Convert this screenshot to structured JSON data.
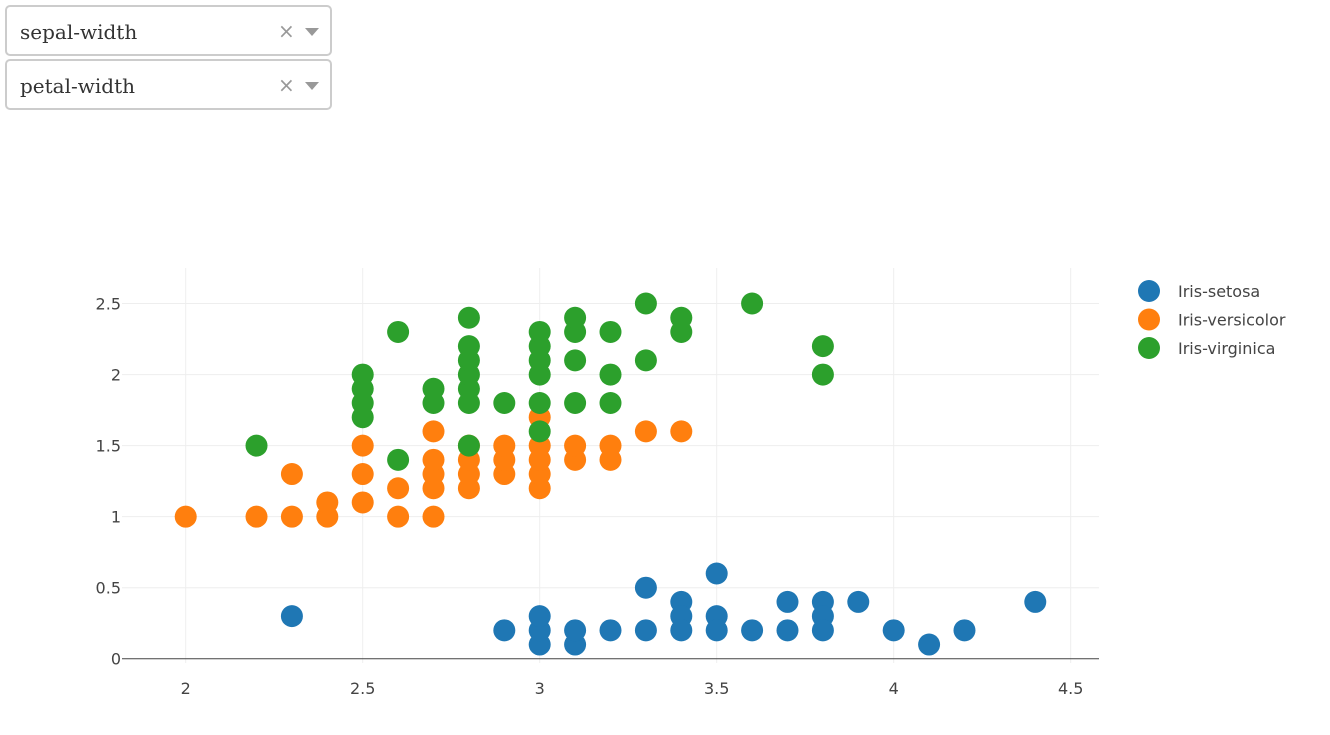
{
  "dropdowns": [
    {
      "value": "sepal-width",
      "clear_glyph": "×"
    },
    {
      "value": "petal-width",
      "clear_glyph": "×"
    }
  ],
  "chart_data": {
    "type": "scatter",
    "xlim": [
      1.82,
      4.58
    ],
    "ylim": [
      -0.03,
      2.75
    ],
    "x_ticks": [
      2,
      2.5,
      3,
      3.5,
      4,
      4.5
    ],
    "y_ticks": [
      0,
      0.5,
      1,
      1.5,
      2,
      2.5
    ],
    "grid": true,
    "legend_position": "top-right",
    "series": [
      {
        "name": "Iris-setosa",
        "color": "#1f77b4",
        "points": [
          [
            2.3,
            0.3
          ],
          [
            2.9,
            0.2
          ],
          [
            3.0,
            0.1
          ],
          [
            3.0,
            0.2
          ],
          [
            3.0,
            0.3
          ],
          [
            3.1,
            0.1
          ],
          [
            3.1,
            0.2
          ],
          [
            3.2,
            0.2
          ],
          [
            3.3,
            0.5
          ],
          [
            3.3,
            0.2
          ],
          [
            3.4,
            0.4
          ],
          [
            3.4,
            0.3
          ],
          [
            3.4,
            0.2
          ],
          [
            3.5,
            0.6
          ],
          [
            3.5,
            0.3
          ],
          [
            3.5,
            0.2
          ],
          [
            3.6,
            0.2
          ],
          [
            3.7,
            0.2
          ],
          [
            3.7,
            0.4
          ],
          [
            3.8,
            0.4
          ],
          [
            3.8,
            0.3
          ],
          [
            3.8,
            0.2
          ],
          [
            3.9,
            0.4
          ],
          [
            4.0,
            0.2
          ],
          [
            4.1,
            0.1
          ],
          [
            4.2,
            0.2
          ],
          [
            4.4,
            0.4
          ]
        ]
      },
      {
        "name": "Iris-versicolor",
        "color": "#ff7f0e",
        "points": [
          [
            2.0,
            1.0
          ],
          [
            2.2,
            1.0
          ],
          [
            2.3,
            1.0
          ],
          [
            2.3,
            1.3
          ],
          [
            2.4,
            1.0
          ],
          [
            2.4,
            1.1
          ],
          [
            2.5,
            1.1
          ],
          [
            2.5,
            1.3
          ],
          [
            2.5,
            1.5
          ],
          [
            2.6,
            1.0
          ],
          [
            2.6,
            1.2
          ],
          [
            2.7,
            1.0
          ],
          [
            2.7,
            1.2
          ],
          [
            2.7,
            1.3
          ],
          [
            2.7,
            1.4
          ],
          [
            2.7,
            1.6
          ],
          [
            2.8,
            1.2
          ],
          [
            2.8,
            1.3
          ],
          [
            2.8,
            1.4
          ],
          [
            2.8,
            1.5
          ],
          [
            2.9,
            1.3
          ],
          [
            2.9,
            1.4
          ],
          [
            2.9,
            1.5
          ],
          [
            3.0,
            1.2
          ],
          [
            3.0,
            1.3
          ],
          [
            3.0,
            1.4
          ],
          [
            3.0,
            1.5
          ],
          [
            3.0,
            1.7
          ],
          [
            3.1,
            1.4
          ],
          [
            3.1,
            1.5
          ],
          [
            3.2,
            1.4
          ],
          [
            3.2,
            1.5
          ],
          [
            3.3,
            1.6
          ],
          [
            3.4,
            1.6
          ]
        ]
      },
      {
        "name": "Iris-virginica",
        "color": "#2ca02c",
        "points": [
          [
            2.2,
            1.5
          ],
          [
            2.5,
            1.7
          ],
          [
            2.5,
            1.8
          ],
          [
            2.5,
            1.9
          ],
          [
            2.5,
            2.0
          ],
          [
            2.6,
            1.4
          ],
          [
            2.6,
            2.3
          ],
          [
            2.7,
            1.8
          ],
          [
            2.7,
            1.9
          ],
          [
            2.8,
            1.5
          ],
          [
            2.8,
            1.8
          ],
          [
            2.8,
            1.9
          ],
          [
            2.8,
            2.0
          ],
          [
            2.8,
            2.1
          ],
          [
            2.8,
            2.2
          ],
          [
            2.8,
            2.4
          ],
          [
            2.9,
            1.8
          ],
          [
            3.0,
            1.6
          ],
          [
            3.0,
            1.8
          ],
          [
            3.0,
            2.0
          ],
          [
            3.0,
            2.1
          ],
          [
            3.0,
            2.2
          ],
          [
            3.0,
            2.3
          ],
          [
            3.1,
            1.8
          ],
          [
            3.1,
            2.1
          ],
          [
            3.1,
            2.3
          ],
          [
            3.1,
            2.4
          ],
          [
            3.2,
            1.8
          ],
          [
            3.2,
            2.0
          ],
          [
            3.2,
            2.3
          ],
          [
            3.3,
            2.1
          ],
          [
            3.3,
            2.5
          ],
          [
            3.4,
            2.3
          ],
          [
            3.4,
            2.4
          ],
          [
            3.6,
            2.5
          ],
          [
            3.8,
            2.0
          ],
          [
            3.8,
            2.2
          ]
        ]
      }
    ]
  }
}
